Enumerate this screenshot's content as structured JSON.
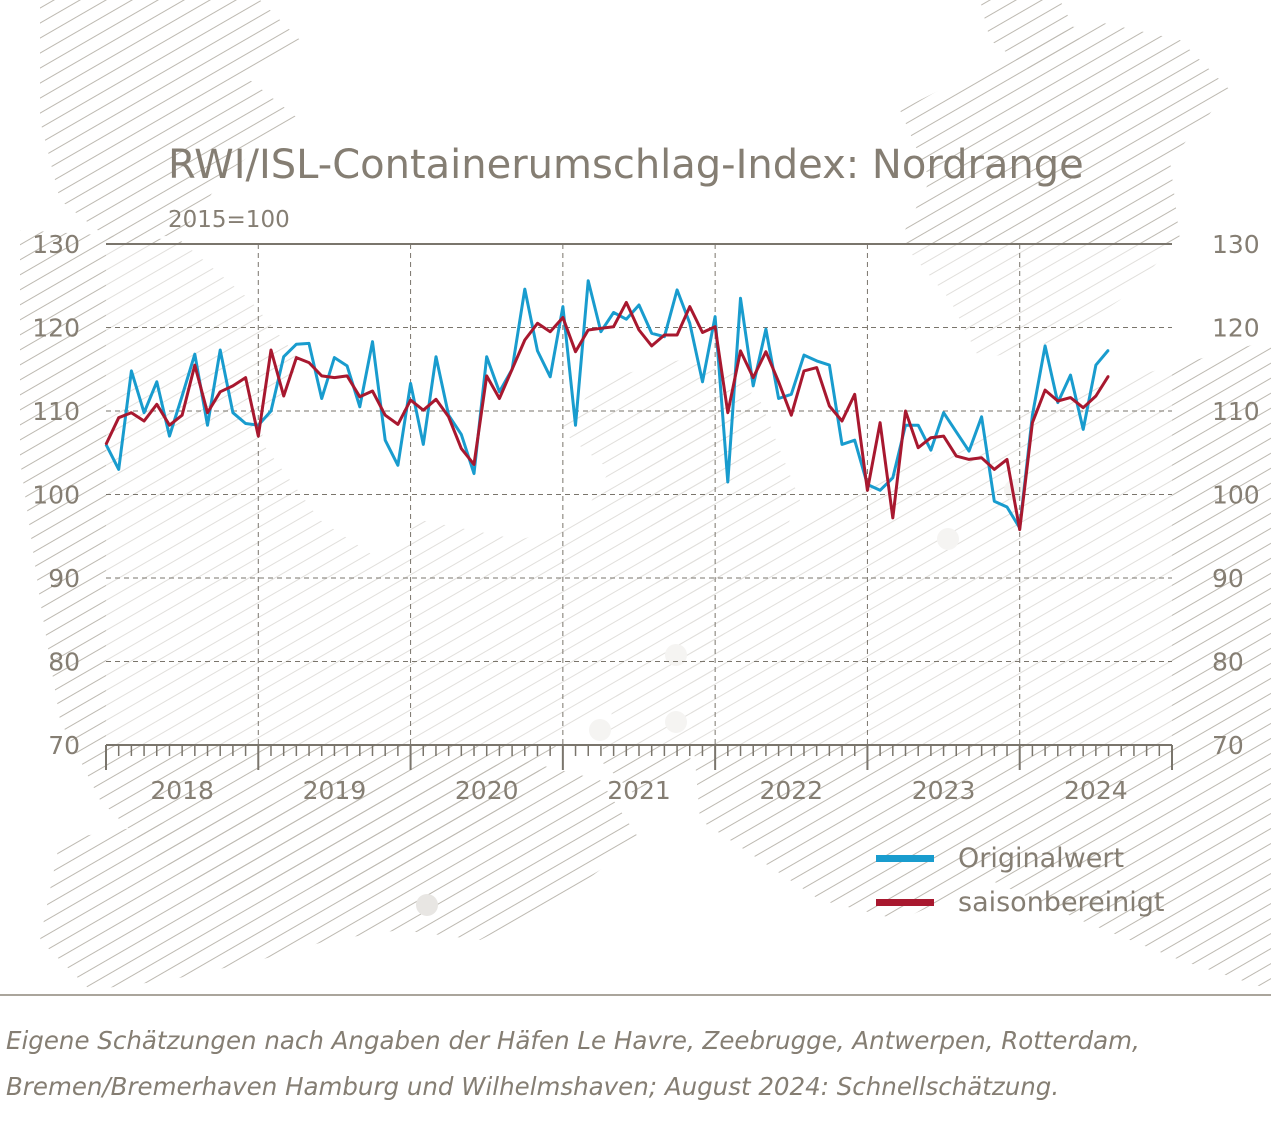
{
  "title": "RWI/ISL-Containerumschlag-Index: Nordrange",
  "subtitle": "2015=100",
  "source_note": "Eigene Schätzungen nach Angaben der Häfen Le Havre, Zeebrugge, Antwerpen, Rotterdam, Bremen/Bremerhaven Hamburg und Wilhelmshaven; August 2024: Schnellschätzung.",
  "colors": {
    "original": "#199cce",
    "seasonal": "#a8182f",
    "text": "#857e73",
    "grid": "#7a756c"
  },
  "chart_data": {
    "type": "line",
    "title": "RWI/ISL-Containerumschlag-Index: Nordrange",
    "subtitle": "2015=100",
    "xlabel": "",
    "ylabel": "",
    "ylim": [
      70,
      130
    ],
    "yticks": [
      "70",
      "80",
      "90",
      "100",
      "110",
      "120",
      "130"
    ],
    "xticks": [
      "2018",
      "2019",
      "2020",
      "2021",
      "2022",
      "2023",
      "2024"
    ],
    "x_start": "2018-01",
    "x_end": "2024-08",
    "legend_position": "bottom-right",
    "grid": true,
    "series": [
      {
        "name": "Originalwert",
        "color": "#199cce",
        "values": [
          106,
          103,
          114.8,
          109.8,
          113.5,
          107,
          111.8,
          116.8,
          108.3,
          117.3,
          109.8,
          108.5,
          108.3,
          110,
          116.5,
          118,
          118.1,
          111.5,
          116.4,
          115.4,
          110.5,
          118.3,
          106.5,
          103.5,
          113.3,
          106,
          116.5,
          109.5,
          107.2,
          102.5,
          116.5,
          112.3,
          115,
          124.6,
          117.2,
          114.1,
          122.5,
          108.3,
          125.6,
          119.5,
          121.8,
          121,
          122.7,
          119.3,
          118.9,
          124.5,
          120.5,
          113.5,
          121.3,
          101.5,
          123.5,
          113,
          119.8,
          111.5,
          112,
          116.7,
          116,
          115.5,
          106,
          106.5,
          101.2,
          100.5,
          102,
          108.3,
          108.3,
          105.3,
          109.8,
          107.5,
          105.2,
          109.3,
          99.2,
          98.5,
          96,
          109.5,
          117.8,
          111,
          114.3,
          107.8,
          115.5,
          117.3
        ]
      },
      {
        "name": "saisonbereinigt",
        "color": "#a8182f",
        "values": [
          106,
          109.2,
          109.8,
          108.8,
          110.8,
          108.3,
          109.5,
          115.5,
          109.8,
          112.3,
          113,
          114,
          107,
          117.3,
          111.8,
          116.4,
          115.8,
          114.2,
          114,
          114.2,
          111.7,
          112.4,
          109.5,
          108.4,
          111.3,
          110.1,
          111.4,
          109.3,
          105.5,
          103.6,
          114.2,
          111.5,
          115,
          118.5,
          120.5,
          119.5,
          121.2,
          117.1,
          119.7,
          119.9,
          120.1,
          123,
          119.7,
          117.8,
          119.1,
          119.1,
          122.5,
          119.4,
          120.1,
          109.8,
          117.2,
          114,
          117.1,
          113.5,
          109.5,
          114.8,
          115.2,
          110.6,
          108.8,
          112,
          100.5,
          108.6,
          97.2,
          110,
          105.6,
          106.8,
          107,
          104.6,
          104.2,
          104.4,
          103,
          104.2,
          95.8,
          108.6,
          112.5,
          111.2,
          111.6,
          110.4,
          111.8,
          114.2
        ]
      }
    ]
  }
}
